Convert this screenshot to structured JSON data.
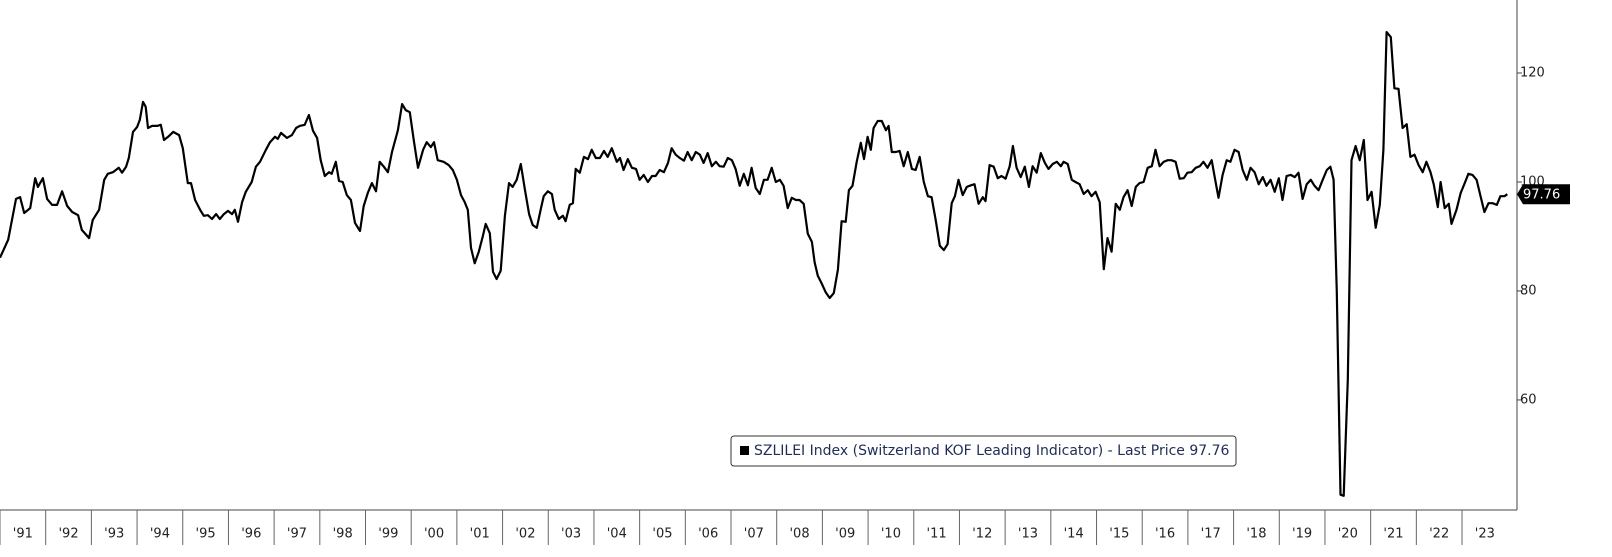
{
  "chart_data": {
    "type": "line",
    "x": [
      1991.0,
      1991.18,
      1991.35,
      1991.44,
      1991.53,
      1991.66,
      1991.77,
      1991.83,
      1991.94,
      1992.03,
      1992.14,
      1992.25,
      1992.36,
      1992.47,
      1992.58,
      1992.71,
      1992.79,
      1992.95,
      1993.03,
      1993.17,
      1993.28,
      1993.36,
      1993.47,
      1993.6,
      1993.67,
      1993.76,
      1993.82,
      1993.91,
      1994.0,
      1994.06,
      1994.13,
      1994.19,
      1994.24,
      1994.33,
      1994.44,
      1994.52,
      1994.59,
      1994.68,
      1994.79,
      1994.92,
      1995.0,
      1995.11,
      1995.18,
      1995.27,
      1995.38,
      1995.46,
      1995.55,
      1995.64,
      1995.73,
      1995.81,
      1995.9,
      1995.99,
      1996.08,
      1996.14,
      1996.21,
      1996.3,
      1996.38,
      1996.51,
      1996.6,
      1996.69,
      1996.82,
      1996.91,
      1997.02,
      1997.08,
      1997.15,
      1997.28,
      1997.39,
      1997.48,
      1997.56,
      1997.67,
      1997.76,
      1997.85,
      1997.94,
      1998.02,
      1998.11,
      1998.2,
      1998.26,
      1998.35,
      1998.42,
      1998.5,
      1998.59,
      1998.68,
      1998.77,
      1998.88,
      1998.96,
      1999.05,
      1999.14,
      1999.23,
      1999.31,
      1999.4,
      1999.49,
      1999.58,
      1999.71,
      1999.8,
      1999.88,
      1999.97,
      2000.06,
      2000.15,
      2000.26,
      2000.34,
      2000.43,
      2000.5,
      2000.58,
      2000.71,
      2000.82,
      2000.91,
      2001.0,
      2001.09,
      2001.17,
      2001.24,
      2001.31,
      2001.39,
      2001.48,
      2001.57,
      2001.63,
      2001.72,
      2001.79,
      2001.87,
      2001.96,
      2002.05,
      2002.14,
      2002.22,
      2002.31,
      2002.4,
      2002.49,
      2002.58,
      2002.66,
      2002.75,
      2002.84,
      2002.9,
      2002.99,
      2003.08,
      2003.14,
      2003.23,
      2003.32,
      2003.38,
      2003.47,
      2003.54,
      2003.6,
      2003.69,
      2003.78,
      2003.87,
      2003.95,
      2004.04,
      2004.13,
      2004.22,
      2004.3,
      2004.39,
      2004.5,
      2004.57,
      2004.65,
      2004.74,
      2004.83,
      2004.92,
      2005.0,
      2005.09,
      2005.18,
      2005.27,
      2005.35,
      2005.44,
      2005.53,
      2005.62,
      2005.7,
      2005.79,
      2005.88,
      2005.97,
      2006.05,
      2006.14,
      2006.23,
      2006.32,
      2006.4,
      2006.49,
      2006.58,
      2006.67,
      2006.75,
      2006.84,
      2006.93,
      2007.02,
      2007.1,
      2007.19,
      2007.28,
      2007.37,
      2007.45,
      2007.54,
      2007.63,
      2007.72,
      2007.8,
      2007.89,
      2007.98,
      2008.07,
      2008.15,
      2008.24,
      2008.33,
      2008.42,
      2008.5,
      2008.59,
      2008.68,
      2008.77,
      2008.83,
      2008.9,
      2008.99,
      2009.07,
      2009.16,
      2009.25,
      2009.34,
      2009.42,
      2009.51,
      2009.58,
      2009.66,
      2009.75,
      2009.84,
      2009.91,
      2009.99,
      2010.06,
      2010.12,
      2010.21,
      2010.3,
      2010.39,
      2010.45,
      2010.52,
      2010.61,
      2010.69,
      2010.78,
      2010.87,
      2010.96,
      2011.04,
      2011.13,
      2011.22,
      2011.31,
      2011.39,
      2011.48,
      2011.57,
      2011.66,
      2011.74,
      2011.83,
      2011.9,
      2011.98,
      2012.07,
      2012.16,
      2012.25,
      2012.33,
      2012.42,
      2012.51,
      2012.57,
      2012.66,
      2012.75,
      2012.84,
      2012.92,
      2013.01,
      2013.1,
      2013.17,
      2013.25,
      2013.34,
      2013.43,
      2013.52,
      2013.6,
      2013.69,
      2013.78,
      2013.87,
      2013.95,
      2014.04,
      2014.13,
      2014.22,
      2014.28,
      2014.37,
      2014.46,
      2014.54,
      2014.63,
      2014.72,
      2014.81,
      2014.89,
      2014.98,
      2015.07,
      2015.16,
      2015.24,
      2015.33,
      2015.42,
      2015.51,
      2015.59,
      2015.68,
      2015.77,
      2015.86,
      2015.94,
      2016.03,
      2016.12,
      2016.21,
      2016.29,
      2016.38,
      2016.47,
      2016.56,
      2016.64,
      2016.73,
      2016.82,
      2016.91,
      2016.99,
      2017.08,
      2017.17,
      2017.26,
      2017.34,
      2017.43,
      2017.52,
      2017.59,
      2017.67,
      2017.76,
      2017.85,
      2017.93,
      2018.02,
      2018.11,
      2018.2,
      2018.29,
      2018.37,
      2018.46,
      2018.55,
      2018.64,
      2018.72,
      2018.81,
      2018.9,
      2018.99,
      2019.07,
      2019.16,
      2019.25,
      2019.34,
      2019.42,
      2019.51,
      2019.6,
      2019.69,
      2019.77,
      2019.86,
      2019.95,
      2020.04,
      2020.12,
      2020.19,
      2020.26,
      2020.34,
      2020.41,
      2020.5,
      2020.58,
      2020.67,
      2020.76,
      2020.85,
      2020.93,
      2021.02,
      2021.11,
      2021.2,
      2021.28,
      2021.35,
      2021.44,
      2021.52,
      2021.61,
      2021.7,
      2021.79,
      2021.87,
      2021.96,
      2022.05,
      2022.14,
      2022.22,
      2022.31,
      2022.38,
      2022.47,
      2022.53,
      2022.62,
      2022.71,
      2022.77,
      2022.88,
      2022.97,
      2023.05,
      2023.14,
      2023.23,
      2023.32,
      2023.41,
      2023.49,
      2023.58,
      2023.67,
      2023.76,
      2023.84,
      2023.93,
      2023.99
    ],
    "series": [
      {
        "name": "SZLILEI Index (Switzerland KOF Leading Indicator) - Last Price 97.76",
        "color": "#000000",
        "values": [
          86.1,
          89.4,
          96.9,
          97.2,
          94.3,
          95.2,
          100.7,
          99.1,
          100.7,
          96.9,
          95.8,
          95.8,
          98.3,
          95.6,
          94.5,
          93.9,
          91.2,
          89.7,
          93.0,
          94.9,
          100.4,
          101.5,
          101.8,
          102.6,
          101.7,
          102.8,
          104.4,
          109.2,
          110.1,
          111.4,
          114.7,
          113.8,
          109.9,
          110.3,
          110.3,
          110.5,
          107.7,
          108.3,
          109.2,
          108.6,
          106.2,
          99.8,
          99.8,
          96.7,
          94.9,
          93.8,
          93.9,
          93.2,
          94.1,
          93.2,
          94.1,
          94.7,
          94.1,
          94.9,
          92.7,
          96.3,
          98.2,
          100.0,
          102.8,
          103.7,
          105.9,
          107.3,
          108.3,
          107.9,
          109.0,
          108.1,
          108.6,
          109.9,
          110.3,
          110.5,
          112.3,
          109.4,
          108.1,
          104.0,
          101.1,
          101.8,
          101.5,
          103.7,
          100.2,
          100.0,
          97.6,
          96.7,
          92.5,
          91.0,
          95.6,
          98.0,
          99.8,
          98.3,
          103.7,
          102.8,
          101.8,
          105.5,
          109.5,
          114.3,
          113.2,
          112.8,
          107.5,
          102.6,
          105.9,
          107.3,
          106.4,
          107.3,
          104.0,
          103.7,
          103.1,
          102.2,
          100.4,
          97.6,
          96.3,
          94.9,
          87.9,
          85.1,
          87.2,
          90.1,
          92.3,
          90.6,
          83.5,
          82.2,
          83.7,
          93.8,
          99.8,
          99.1,
          100.4,
          103.3,
          98.5,
          94.1,
          92.1,
          91.6,
          95.2,
          97.4,
          98.3,
          97.8,
          94.9,
          93.2,
          93.8,
          92.8,
          95.8,
          96.1,
          102.4,
          101.7,
          104.6,
          104.2,
          105.9,
          104.4,
          104.4,
          105.7,
          104.6,
          106.2,
          103.7,
          104.4,
          102.2,
          104.2,
          102.6,
          102.4,
          100.4,
          101.3,
          100.0,
          101.1,
          101.1,
          102.2,
          101.8,
          103.5,
          106.2,
          105.0,
          104.4,
          103.9,
          105.5,
          104.0,
          105.5,
          105.0,
          103.5,
          105.3,
          102.9,
          103.7,
          102.9,
          102.8,
          104.4,
          104.0,
          102.4,
          99.3,
          101.5,
          99.4,
          102.6,
          98.9,
          97.8,
          100.4,
          100.4,
          102.6,
          100.0,
          100.4,
          99.3,
          95.2,
          97.1,
          96.7,
          96.7,
          96.0,
          90.5,
          89.0,
          85.3,
          82.8,
          81.3,
          79.8,
          78.7,
          79.6,
          83.9,
          92.8,
          92.7,
          98.5,
          99.3,
          103.7,
          107.2,
          104.2,
          108.3,
          105.9,
          109.9,
          111.2,
          111.2,
          109.5,
          110.3,
          105.5,
          105.5,
          105.7,
          102.9,
          105.5,
          102.4,
          102.2,
          104.6,
          100.0,
          97.4,
          97.2,
          93.0,
          88.3,
          87.5,
          88.6,
          96.1,
          97.4,
          100.4,
          97.6,
          99.1,
          99.4,
          99.6,
          96.0,
          97.2,
          96.5,
          103.1,
          102.8,
          100.7,
          101.1,
          100.6,
          102.9,
          106.6,
          102.6,
          100.9,
          102.8,
          99.1,
          102.9,
          101.7,
          105.3,
          103.5,
          102.4,
          103.3,
          103.7,
          102.9,
          103.7,
          103.3,
          100.4,
          100.0,
          99.6,
          97.8,
          98.5,
          97.4,
          98.2,
          96.3,
          84.0,
          89.7,
          87.2,
          96.0,
          94.9,
          97.2,
          98.5,
          95.6,
          99.1,
          99.8,
          100.0,
          102.6,
          102.9,
          105.9,
          102.9,
          103.7,
          104.0,
          104.0,
          103.7,
          100.6,
          100.7,
          101.7,
          101.8,
          102.6,
          102.9,
          103.7,
          102.6,
          104.0,
          100.7,
          97.1,
          101.3,
          104.0,
          103.7,
          105.9,
          105.5,
          102.2,
          100.4,
          102.6,
          101.8,
          99.6,
          100.9,
          99.3,
          100.4,
          98.2,
          100.7,
          96.7,
          101.1,
          101.3,
          100.9,
          101.7,
          96.9,
          99.6,
          100.4,
          99.3,
          98.5,
          100.4,
          102.2,
          102.8,
          100.4,
          79.8,
          42.6,
          42.4,
          63.7,
          104.0,
          106.6,
          104.0,
          107.7,
          96.7,
          98.2,
          91.6,
          95.8,
          105.9,
          127.5,
          126.6,
          117.2,
          117.1,
          109.9,
          110.6,
          104.6,
          105.0,
          103.1,
          101.8,
          103.7,
          101.8,
          99.6,
          95.4,
          100.0,
          95.2,
          96.0,
          92.3,
          94.9,
          98.0,
          99.6,
          101.5,
          101.3,
          100.4,
          97.2,
          94.5,
          96.1,
          96.1,
          95.8,
          97.4,
          97.4,
          97.76
        ]
      }
    ],
    "xlim": [
      1991,
      2024.05
    ],
    "xticks": [
      {
        "value": 1991,
        "label": "'91"
      },
      {
        "value": 1992,
        "label": "'92"
      },
      {
        "value": 1993,
        "label": "'93"
      },
      {
        "value": 1994,
        "label": "'94"
      },
      {
        "value": 1995,
        "label": "'95"
      },
      {
        "value": 1996,
        "label": "'96"
      },
      {
        "value": 1997,
        "label": "'97"
      },
      {
        "value": 1998,
        "label": "'98"
      },
      {
        "value": 1999,
        "label": "'99"
      },
      {
        "value": 2000,
        "label": "'00"
      },
      {
        "value": 2001,
        "label": "'01"
      },
      {
        "value": 2002,
        "label": "'02"
      },
      {
        "value": 2003,
        "label": "'03"
      },
      {
        "value": 2004,
        "label": "'04"
      },
      {
        "value": 2005,
        "label": "'05"
      },
      {
        "value": 2006,
        "label": "'06"
      },
      {
        "value": 2007,
        "label": "'07"
      },
      {
        "value": 2008,
        "label": "'08"
      },
      {
        "value": 2009,
        "label": "'09"
      },
      {
        "value": 2010,
        "label": "'10"
      },
      {
        "value": 2011,
        "label": "'11"
      },
      {
        "value": 2012,
        "label": "'12"
      },
      {
        "value": 2013,
        "label": "'13"
      },
      {
        "value": 2014,
        "label": "'14"
      },
      {
        "value": 2015,
        "label": "'15"
      },
      {
        "value": 2016,
        "label": "'16"
      },
      {
        "value": 2017,
        "label": "'17"
      },
      {
        "value": 2018,
        "label": "'18"
      },
      {
        "value": 2019,
        "label": "'19"
      },
      {
        "value": 2020,
        "label": "'20"
      },
      {
        "value": 2021,
        "label": "'21"
      },
      {
        "value": 2022,
        "label": "'22"
      },
      {
        "value": 2023,
        "label": "'23"
      }
    ],
    "ylim": [
      39.8,
      133.4
    ],
    "yticks": [
      60,
      80,
      100,
      120
    ],
    "grid": false,
    "legend": "bottom"
  }
}
